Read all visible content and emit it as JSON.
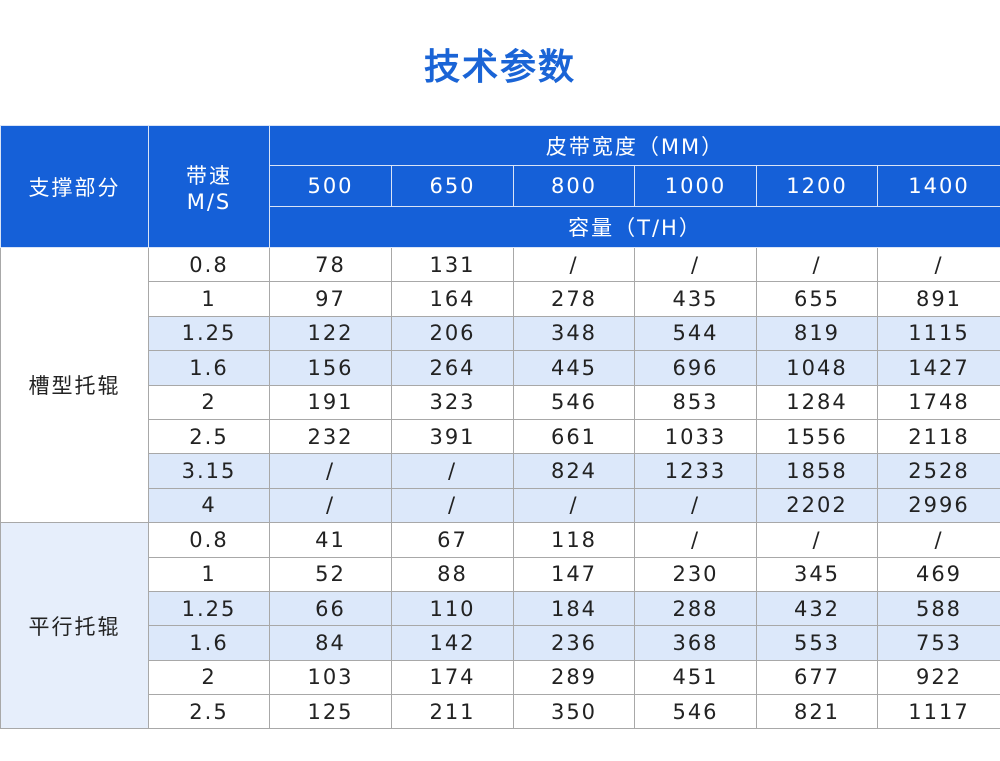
{
  "title": "技术参数",
  "header": {
    "section": "支撑部分",
    "speed": "带速",
    "speed_unit": "M/S",
    "belt_width": "皮带宽度（MM）",
    "widths": [
      "500",
      "650",
      "800",
      "1000",
      "1200",
      "1400"
    ],
    "capacity": "容量（T/H）"
  },
  "colors": {
    "header_bg": "#1560d8",
    "title": "#1a64d6",
    "highlight_row": "#dce8fa"
  },
  "groups": [
    {
      "name": "槽型托辊",
      "rows": [
        {
          "speed": "0.8",
          "values": [
            "78",
            "131",
            "/",
            "/",
            "/",
            "/"
          ]
        },
        {
          "speed": "1",
          "values": [
            "97",
            "164",
            "278",
            "435",
            "655",
            "891"
          ]
        },
        {
          "speed": "1.25",
          "values": [
            "122",
            "206",
            "348",
            "544",
            "819",
            "1115"
          ],
          "highlight": true
        },
        {
          "speed": "1.6",
          "values": [
            "156",
            "264",
            "445",
            "696",
            "1048",
            "1427"
          ],
          "highlight": true
        },
        {
          "speed": "2",
          "values": [
            "191",
            "323",
            "546",
            "853",
            "1284",
            "1748"
          ]
        },
        {
          "speed": "2.5",
          "values": [
            "232",
            "391",
            "661",
            "1033",
            "1556",
            "2118"
          ]
        },
        {
          "speed": "3.15",
          "values": [
            "/",
            "/",
            "824",
            "1233",
            "1858",
            "2528"
          ],
          "highlight": true
        },
        {
          "speed": "4",
          "values": [
            "/",
            "/",
            "/",
            "/",
            "2202",
            "2996"
          ],
          "highlight": true
        }
      ]
    },
    {
      "name": "平行托辊",
      "rows": [
        {
          "speed": "0.8",
          "values": [
            "41",
            "67",
            "118",
            "/",
            "/",
            "/"
          ]
        },
        {
          "speed": "1",
          "values": [
            "52",
            "88",
            "147",
            "230",
            "345",
            "469"
          ]
        },
        {
          "speed": "1.25",
          "values": [
            "66",
            "110",
            "184",
            "288",
            "432",
            "588"
          ],
          "highlight": true
        },
        {
          "speed": "1.6",
          "values": [
            "84",
            "142",
            "236",
            "368",
            "553",
            "753"
          ],
          "highlight": true
        },
        {
          "speed": "2",
          "values": [
            "103",
            "174",
            "289",
            "451",
            "677",
            "922"
          ]
        },
        {
          "speed": "2.5",
          "values": [
            "125",
            "211",
            "350",
            "546",
            "821",
            "1117"
          ]
        }
      ]
    }
  ]
}
